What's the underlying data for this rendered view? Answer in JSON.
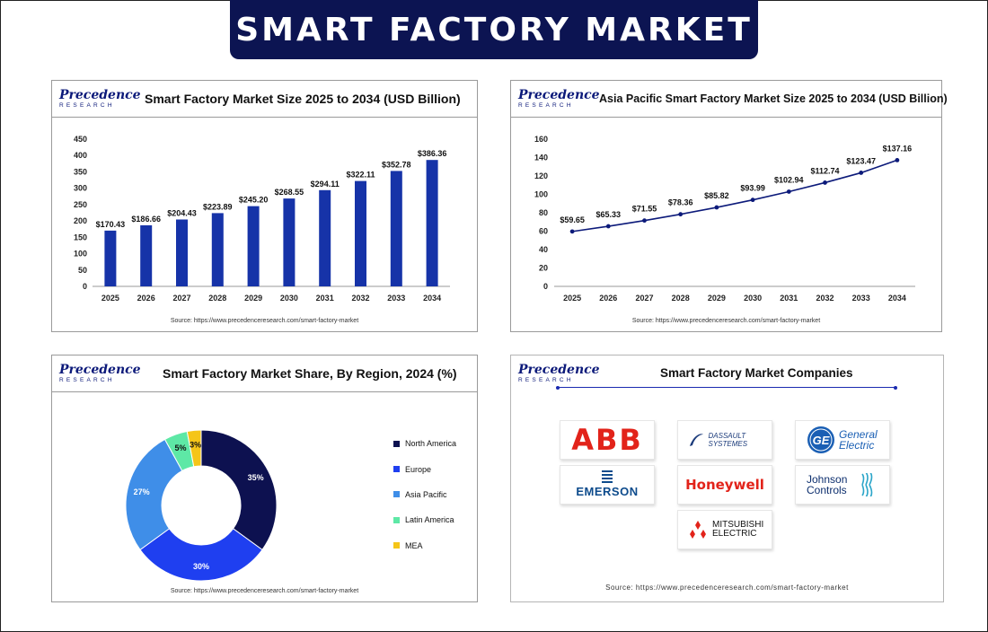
{
  "page": {
    "title": "SMART FACTORY MARKET"
  },
  "logo": {
    "line1": "Precedence",
    "line2": "RESEARCH"
  },
  "source": "Source: https://www.precedenceresearch.com/smart-factory-market",
  "panels": {
    "market_size": {
      "title": "Smart Factory Market Size 2025 to 2034 (USD Billion)"
    },
    "asia_pacific": {
      "title": "Asia Pacific Smart Factory Market Size 2025 to 2034 (USD Billion)"
    },
    "region_share": {
      "title": "Smart Factory Market Share, By Region, 2024 (%)"
    },
    "companies": {
      "title": "Smart Factory Market Companies",
      "logos": [
        "ABB",
        "DASSAULT SYSTEMES",
        "General Electric",
        "EMERSON",
        "Honeywell",
        "Johnson Controls",
        "MITSUBISHI ELECTRIC"
      ]
    }
  },
  "chart_data": [
    {
      "type": "bar",
      "title": "Smart Factory Market Size 2025 to 2034 (USD Billion)",
      "categories": [
        "2025",
        "2026",
        "2027",
        "2028",
        "2029",
        "2030",
        "2031",
        "2032",
        "2033",
        "2034"
      ],
      "values": [
        170.43,
        186.66,
        204.43,
        223.89,
        245.2,
        268.55,
        294.11,
        322.11,
        352.78,
        386.36
      ],
      "labels": [
        "$170.43",
        "$186.66",
        "$204.43",
        "$223.89",
        "$245.20",
        "$268.55",
        "$294.11",
        "$322.11",
        "$352.78",
        "$386.36"
      ],
      "ylim": [
        0,
        450
      ],
      "yticks": [
        0,
        50,
        100,
        150,
        200,
        250,
        300,
        350,
        400,
        450
      ],
      "grid": false,
      "color": "#1633a8"
    },
    {
      "type": "line",
      "title": "Asia Pacific Smart Factory Market Size 2025 to 2034 (USD Billion)",
      "categories": [
        "2025",
        "2026",
        "2027",
        "2028",
        "2029",
        "2030",
        "2031",
        "2032",
        "2033",
        "2034"
      ],
      "values": [
        59.65,
        65.33,
        71.55,
        78.36,
        85.82,
        93.99,
        102.94,
        112.74,
        123.47,
        137.16
      ],
      "labels": [
        "$59.65",
        "$65.33",
        "$71.55",
        "$78.36",
        "$85.82",
        "$93.99",
        "$102.94",
        "$112.74",
        "$123.47",
        "$137.16"
      ],
      "ylim": [
        0,
        160
      ],
      "yticks": [
        0,
        20,
        40,
        60,
        80,
        100,
        120,
        140,
        160
      ],
      "grid": false,
      "color": "#0c1a7a"
    },
    {
      "type": "pie",
      "title": "Smart Factory Market Share, By Region, 2024 (%)",
      "slices": [
        {
          "name": "North America",
          "value": 35,
          "label": "35%",
          "color": "#0d1150"
        },
        {
          "name": "Europe",
          "value": 30,
          "label": "30%",
          "color": "#1f3ff0"
        },
        {
          "name": "Asia Pacific",
          "value": 27,
          "label": "27%",
          "color": "#3f8ee8"
        },
        {
          "name": "Latin America",
          "value": 5,
          "label": "5%",
          "color": "#5ee8a6"
        },
        {
          "name": "MEA",
          "value": 3,
          "label": "3%",
          "color": "#f5c518"
        }
      ],
      "legend": "right"
    }
  ]
}
